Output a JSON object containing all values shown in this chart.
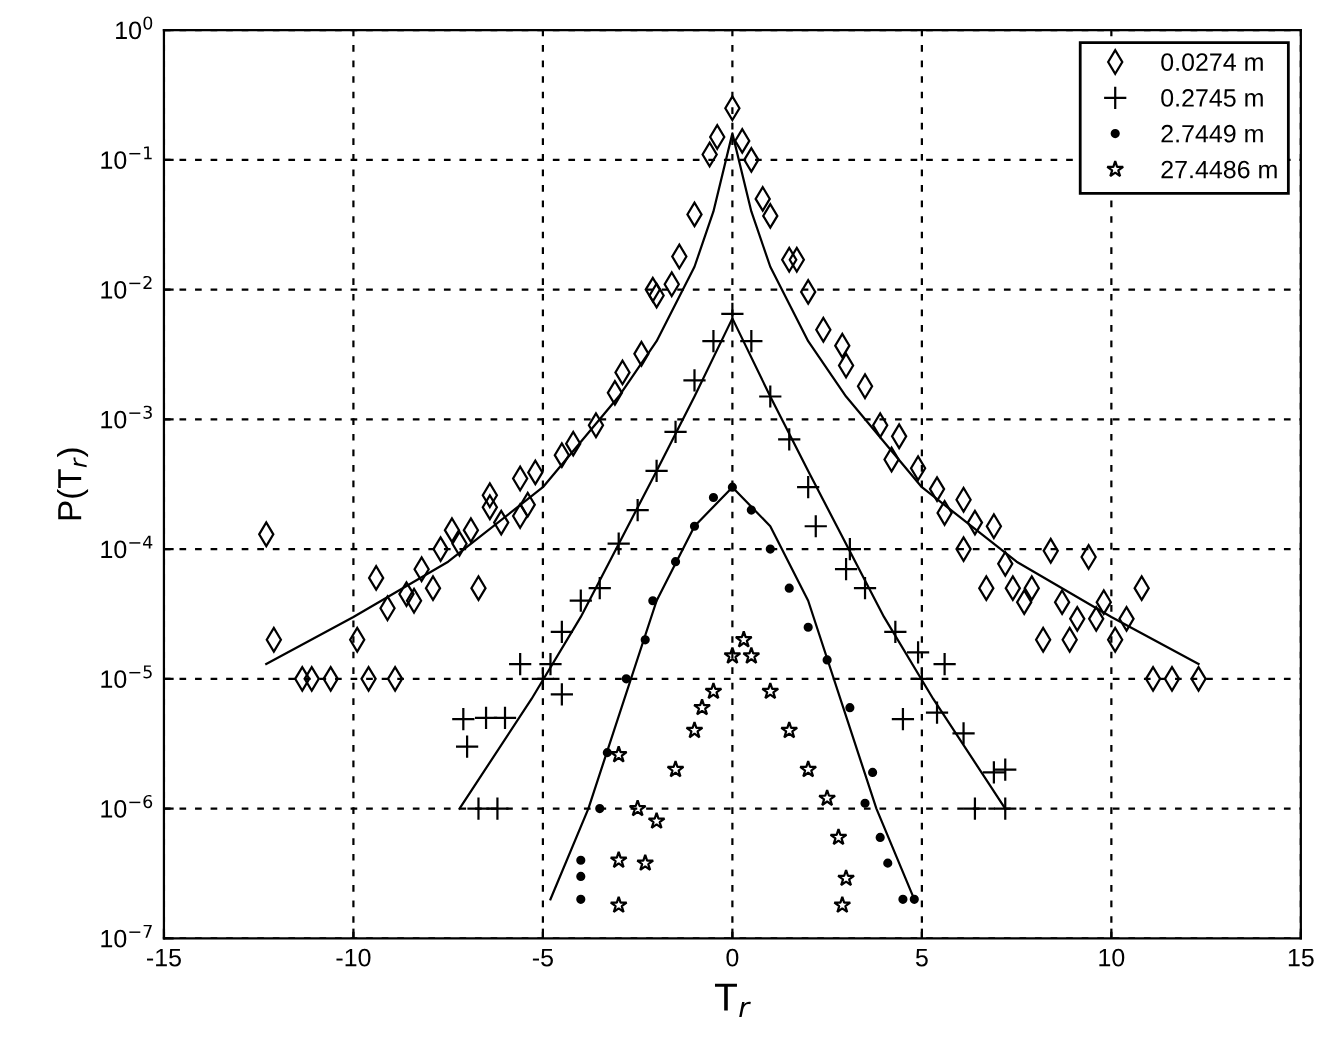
{
  "chart_data": {
    "type": "scatter",
    "xlabel": "T$_{r}$",
    "ylabel": "P(T$_{r}$)",
    "log": "y",
    "grid": true,
    "legend": "top right",
    "xlim": [
      -15,
      15
    ],
    "xticks": [
      -15,
      -10,
      -5,
      0,
      5,
      10,
      15
    ],
    "ylim": [
      1e-07,
      1
    ],
    "yticks": [
      {
        "value": 1e-07,
        "label": "10$^{−7}$"
      },
      {
        "value": 1e-06,
        "label": "10$^{−6}$"
      },
      {
        "value": 1e-05,
        "label": "10$^{−5}$"
      },
      {
        "value": 0.0001,
        "label": "10$^{−4}$"
      },
      {
        "value": 0.001,
        "label": "10$^{−3}$"
      },
      {
        "value": 0.01,
        "label": "10$^{−2}$"
      },
      {
        "value": 0.1,
        "label": "10$^{−1}$"
      },
      {
        "value": 1,
        "label": "10$^{0}$"
      }
    ],
    "series": [
      {
        "name": "0.0274 m",
        "marker": "diamond",
        "color": "#000000",
        "x": [
          -12.3,
          -12.1,
          -11.35,
          -11.1,
          -10.6,
          -9.9,
          -9.6,
          -9.4,
          -9.1,
          -8.9,
          -8.6,
          -8.4,
          -8.2,
          -7.9,
          -7.7,
          -7.4,
          -7.2,
          -6.9,
          -6.7,
          -6.4,
          -6.1,
          -5.6,
          -5.4,
          -6.4,
          -5.6,
          -5.2,
          -4.5,
          -4.2,
          -3.6,
          -3.1,
          -2.9,
          -2.4,
          -2.1,
          -2.0,
          -1.6,
          -1.4,
          -1.0,
          -0.6,
          -0.4,
          0,
          0.26,
          0.5,
          0.8,
          1.0,
          1.5,
          1.7,
          2.0,
          2.4,
          2.9,
          3.0,
          3.5,
          3.9,
          4.2,
          4.4,
          4.9,
          5.4,
          5.6,
          6.1,
          6.1,
          6.4,
          6.7,
          6.9,
          7.2,
          7.4,
          7.7,
          7.9,
          8.2,
          8.4,
          8.7,
          8.9,
          9.1,
          9.4,
          9.6,
          9.8,
          10.1,
          10.4,
          10.8,
          11.1,
          11.6,
          12.3
        ],
        "values": [
          0.00013,
          2e-05,
          1e-05,
          1e-05,
          1e-05,
          2e-05,
          1e-05,
          6e-05,
          3.5e-05,
          1e-05,
          4.5e-05,
          4e-05,
          7e-05,
          5e-05,
          0.0001,
          0.00014,
          0.00011,
          0.00014,
          5e-05,
          0.00021,
          0.00016,
          0.00018,
          0.00022,
          0.00026,
          0.00035,
          0.00039,
          0.00053,
          0.00065,
          0.0009,
          0.0016,
          0.0023,
          0.0032,
          0.01,
          0.009,
          0.011,
          0.018,
          0.038,
          0.11,
          0.15,
          0.25,
          0.14,
          0.1,
          0.05,
          0.037,
          0.017,
          0.017,
          0.0096,
          0.0049,
          0.0037,
          0.0026,
          0.0018,
          0.0009,
          0.00049,
          0.00074,
          0.00042,
          0.00029,
          0.00019,
          0.00024,
          0.0001,
          0.00016,
          5e-05,
          0.00015,
          7.7e-05,
          5e-05,
          3.9e-05,
          5e-05,
          2e-05,
          9.7e-05,
          3.9e-05,
          2e-05,
          2.9e-05,
          8.7e-05,
          2.9e-05,
          3.9e-05,
          2e-05,
          2.9e-05,
          5e-05,
          1e-05,
          1e-05,
          1e-05
        ]
      },
      {
        "name": "0.2745 m",
        "marker": "cross",
        "color": "#000000",
        "x": [
          -7.1,
          -6.5,
          -6.0,
          -7.0,
          -6.7,
          -6.2,
          -5.6,
          -5.0,
          -4.8,
          -4.5,
          -4.5,
          -4.0,
          -3.5,
          -3.0,
          -2.5,
          -2.0,
          -1.5,
          -1.0,
          -0.5,
          0,
          0.5,
          1.0,
          1.5,
          2.0,
          2.2,
          3.1,
          3.0,
          3.5,
          4.3,
          4.9,
          5.0,
          5.6,
          4.5,
          5.4,
          6.1,
          6.9,
          7.2,
          6.4,
          7.2
        ],
        "values": [
          4.9e-06,
          5e-06,
          5e-06,
          3e-06,
          1e-06,
          1e-06,
          1.3e-05,
          1e-05,
          1.3e-05,
          7.6e-06,
          2.3e-05,
          4e-05,
          5e-05,
          0.00011,
          0.0002,
          0.0004,
          0.0008,
          0.002,
          0.004,
          0.0065,
          0.004,
          0.0015,
          0.0007,
          0.0003,
          0.00015,
          0.0001,
          7e-05,
          5e-05,
          2.3e-05,
          1.6e-05,
          1e-05,
          1.3e-05,
          4.9e-06,
          5.5e-06,
          3.8e-06,
          1.9e-06,
          2e-06,
          1e-06,
          1e-06
        ]
      },
      {
        "name": "2.7449 m",
        "marker": "circle",
        "color": "#000000",
        "x": [
          -4.0,
          -4.0,
          -4.0,
          -3.5,
          -3.3,
          -2.8,
          -2.3,
          -2.1,
          -1.5,
          -1.0,
          -0.5,
          0,
          0.5,
          1.0,
          1.5,
          2.0,
          2.5,
          3.1,
          3.7,
          3.5,
          3.9,
          4.1,
          4.5,
          4.8
        ],
        "values": [
          2e-07,
          3e-07,
          4e-07,
          1e-06,
          2.7e-06,
          1e-05,
          2e-05,
          4e-05,
          8e-05,
          0.00015,
          0.00025,
          0.0003,
          0.0002,
          0.0001,
          5e-05,
          2.5e-05,
          1.4e-05,
          6e-06,
          1.9e-06,
          1.1e-06,
          6e-07,
          3.8e-07,
          2e-07,
          2e-07
        ]
      },
      {
        "name": "27.4486 m",
        "marker": "star",
        "color": "#000000",
        "x": [
          -3.0,
          -3.0,
          -3.0,
          -2.3,
          -2.5,
          -2.0,
          -1.5,
          -1.0,
          -0.8,
          -0.5,
          0,
          0.3,
          0.5,
          1.0,
          1.5,
          2.0,
          2.5,
          2.8,
          3.0,
          2.9
        ],
        "values": [
          1.8e-07,
          4e-07,
          2.6e-06,
          3.8e-07,
          1e-06,
          8e-07,
          2e-06,
          4e-06,
          6e-06,
          8e-06,
          1.5e-05,
          2e-05,
          1.5e-05,
          8e-06,
          4e-06,
          2e-06,
          1.2e-06,
          6e-07,
          2.9e-07,
          1.8e-07
        ]
      },
      {
        "type": "line",
        "color": "#000000",
        "line_style": "solid",
        "x": [
          -12.3,
          -10,
          -7.5,
          -5,
          -3,
          -2,
          -1,
          -0.5,
          0,
          0.5,
          1,
          2,
          3,
          5,
          7.5,
          10,
          12.3
        ],
        "values": [
          1.3e-05,
          3e-05,
          8e-05,
          0.0003,
          0.0015,
          0.004,
          0.015,
          0.04,
          0.16,
          0.04,
          0.015,
          0.004,
          0.0015,
          0.0003,
          8e-05,
          3e-05,
          1.3e-05
        ]
      },
      {
        "type": "line",
        "color": "#000000",
        "line_style": "solid",
        "x": [
          -7.2,
          -5.3,
          -4,
          -2,
          -1,
          0,
          1,
          2,
          4,
          5.3,
          7.2
        ],
        "values": [
          1e-06,
          7e-06,
          3e-05,
          0.0004,
          0.0015,
          0.006,
          0.0015,
          0.0004,
          3e-05,
          7e-06,
          1e-06
        ]
      },
      {
        "type": "line",
        "color": "#000000",
        "line_style": "solid",
        "x": [
          -4.8,
          -3.8,
          -2,
          -1,
          0,
          1,
          2,
          3.8,
          4.8
        ],
        "values": [
          2e-07,
          1e-06,
          4e-05,
          0.00015,
          0.0003,
          0.00015,
          4e-05,
          1e-06,
          2e-07
        ]
      }
    ]
  }
}
